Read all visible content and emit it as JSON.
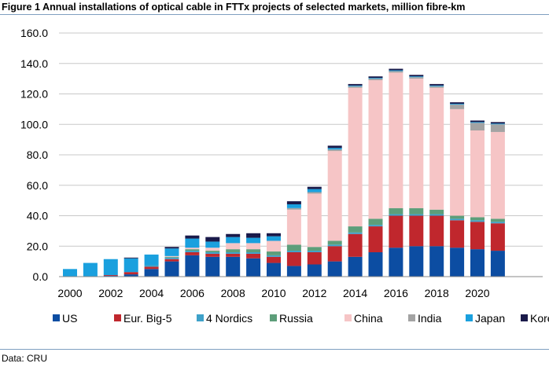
{
  "title": "Figure 1 Annual installations of optical cable in FTTx projects of selected markets, million fibre-km",
  "source": "Data: CRU",
  "colors": {
    "US": "#0c4da2",
    "Eur. Big-5": "#c0272d",
    "4 Nordics": "#3ea1c9",
    "Russia": "#5d9e7a",
    "China": "#f6c5c6",
    "India": "#a3a3a3",
    "Japan": "#1aa0de",
    "Korea": "#1a1a4a"
  },
  "chart_data": {
    "type": "bar",
    "stacked": true,
    "ylim": [
      0,
      160
    ],
    "y_ticks": [
      "0.0",
      "20.0",
      "40.0",
      "60.0",
      "80.0",
      "100.0",
      "120.0",
      "140.0",
      "160.0"
    ],
    "x_tick_labels": [
      "2000",
      "2002",
      "2004",
      "2006",
      "2008",
      "2010",
      "2012",
      "2014",
      "2016",
      "2018",
      "2020"
    ],
    "categories": [
      "2000",
      "2001",
      "2002",
      "2003",
      "2004",
      "2005",
      "2006",
      "2007",
      "2008",
      "2009",
      "2010",
      "2011",
      "2012",
      "2013",
      "2014",
      "2015",
      "2016",
      "2017",
      "2018",
      "2019",
      "2020",
      "2021"
    ],
    "grid": "horizontal",
    "legend_position": "bottom",
    "series": [
      {
        "name": "US",
        "values": [
          0,
          0,
          0.5,
          1.5,
          5,
          10,
          14,
          13,
          13,
          12,
          9,
          7,
          8,
          10,
          13,
          16,
          19,
          20,
          20,
          19,
          18,
          17
        ]
      },
      {
        "name": "Eur. Big-5",
        "values": [
          0,
          0,
          0.5,
          1.5,
          1.5,
          1.5,
          2,
          2,
          2,
          3,
          4,
          9,
          8,
          10,
          15,
          17,
          21,
          20,
          20,
          18,
          18,
          18
        ]
      },
      {
        "name": "4 Nordics",
        "values": [
          0,
          0,
          0,
          0,
          1,
          1,
          1,
          1,
          1,
          1,
          1,
          1,
          1,
          1,
          1,
          1,
          1,
          1,
          1,
          1,
          1,
          1
        ]
      },
      {
        "name": "Russia",
        "values": [
          0,
          0,
          0,
          0,
          0,
          0.5,
          1,
          1,
          2,
          2,
          2.5,
          4,
          2.5,
          2.5,
          4,
          4,
          4,
          4,
          3,
          2,
          2,
          2
        ]
      },
      {
        "name": "China",
        "values": [
          0,
          0,
          0,
          0,
          0,
          0.5,
          1,
          2,
          4,
          4,
          7,
          23,
          35,
          59,
          91,
          91,
          89,
          85,
          80,
          70,
          57,
          57
        ]
      },
      {
        "name": "India",
        "values": [
          0,
          0,
          0,
          0,
          0,
          0,
          0,
          0,
          0,
          0,
          0,
          1,
          1,
          1,
          1,
          1,
          1,
          1,
          1,
          3,
          5,
          5
        ]
      },
      {
        "name": "Japan",
        "values": [
          5,
          9,
          10.5,
          9,
          7,
          5,
          6,
          4,
          4,
          3.5,
          3,
          2.5,
          2,
          1,
          0.5,
          0.5,
          0.5,
          0.5,
          0.5,
          0.5,
          0.5,
          0.5
        ]
      },
      {
        "name": "Korea",
        "values": [
          0,
          0,
          0,
          0.5,
          0,
          1,
          2,
          3,
          2,
          3,
          2,
          2,
          1.5,
          1.5,
          1,
          1,
          1,
          1,
          1,
          1,
          1,
          1
        ]
      }
    ]
  }
}
